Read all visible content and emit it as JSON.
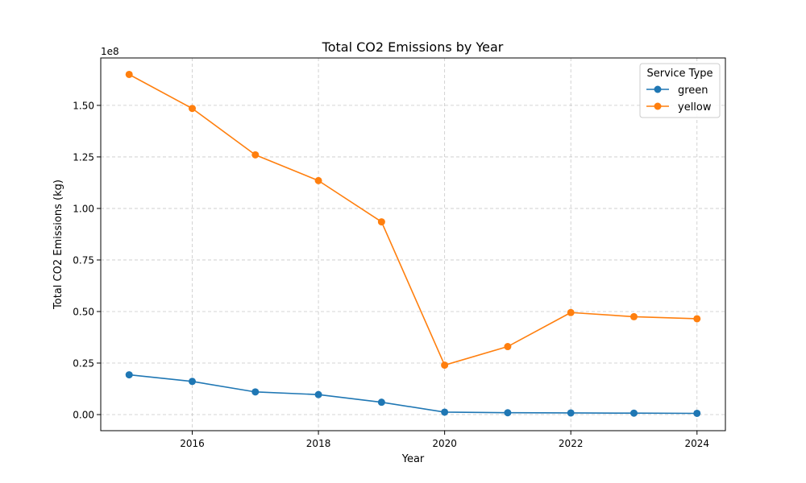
{
  "chart_data": {
    "type": "line",
    "title": "Total CO2 Emissions by Year",
    "xlabel": "Year",
    "ylabel": "Total CO2 Emissions (kg)",
    "y_offset_label": "1e8",
    "x": [
      2015,
      2016,
      2017,
      2018,
      2019,
      2020,
      2021,
      2022,
      2023,
      2024
    ],
    "xlim": [
      2014.55,
      2024.45
    ],
    "ylim": [
      -7800000,
      173000000
    ],
    "x_ticks": [
      2016,
      2018,
      2020,
      2022,
      2024
    ],
    "x_tick_labels": [
      "2016",
      "2018",
      "2020",
      "2022",
      "2024"
    ],
    "y_ticks": [
      0,
      25000000,
      50000000,
      75000000,
      100000000,
      125000000,
      150000000
    ],
    "y_tick_labels": [
      "0.00",
      "0.25",
      "0.50",
      "0.75",
      "1.00",
      "1.25",
      "1.50"
    ],
    "grid": true,
    "legend": {
      "title": "Service Type",
      "position": "top-right"
    },
    "series": [
      {
        "name": "green",
        "color": "#1f77b4",
        "values": [
          19300000,
          16100000,
          11000000,
          9700000,
          6000000,
          1200000,
          900000,
          800000,
          700000,
          600000
        ]
      },
      {
        "name": "yellow",
        "color": "#ff7f0e",
        "values": [
          165000000,
          148500000,
          126000000,
          113500000,
          93500000,
          24000000,
          33000000,
          49500000,
          47500000,
          46500000
        ]
      }
    ]
  }
}
